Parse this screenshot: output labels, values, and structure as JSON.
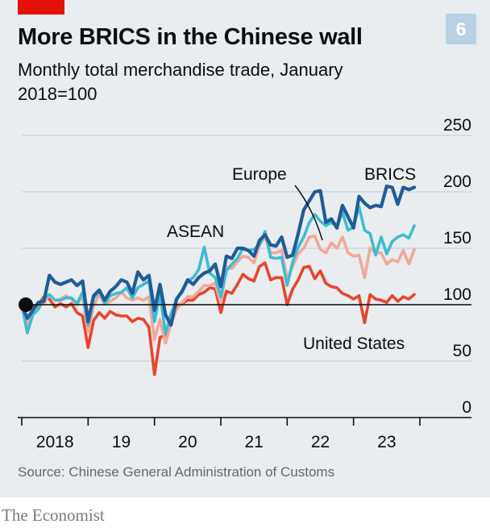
{
  "header": {
    "title": "More BRICS in the Chinese wall",
    "chart_number": "6",
    "subtitle": "Monthly total merchandise trade, January 2018=100"
  },
  "footer": {
    "source": "Source: Chinese General Administration of Customs",
    "brand": "The Economist"
  },
  "colors": {
    "background": "#e9edf0",
    "accent_tag": "#e3120b",
    "brics": "#1f5c99",
    "asean": "#3ebcd2",
    "europe": "#f4a896",
    "united_states": "#e8452c",
    "grid": "#c8d3db",
    "baseline": "#0c0c0c"
  },
  "chart_data": {
    "type": "line",
    "title": "More BRICS in the Chinese wall",
    "subtitle": "Monthly total merchandise trade, January 2018=100",
    "xlabel": "",
    "ylabel": "",
    "ylim": [
      0,
      250
    ],
    "yticks": [
      0,
      50,
      100,
      150,
      200,
      250
    ],
    "xlim": [
      2018.0,
      2024.0
    ],
    "xtick_labels": [
      {
        "x": 2018.5,
        "label": "2018"
      },
      {
        "x": 2019.5,
        "label": "19"
      },
      {
        "x": 2020.5,
        "label": "20"
      },
      {
        "x": 2021.5,
        "label": "21"
      },
      {
        "x": 2022.5,
        "label": "22"
      },
      {
        "x": 2023.5,
        "label": "23"
      }
    ],
    "grid": true,
    "reference_line": 100,
    "x_start": 2018.0,
    "x_step": 0.08333,
    "series": [
      {
        "name": "BRICS",
        "key": "brics",
        "values": [
          100,
          88,
          95,
          102,
          103,
          126,
          120,
          118,
          120,
          122,
          117,
          121,
          85,
          108,
          113,
          104,
          112,
          116,
          122,
          120,
          110,
          129,
          122,
          126,
          95,
          118,
          91,
          82,
          105,
          112,
          122,
          118,
          124,
          128,
          130,
          136,
          116,
          143,
          141,
          150,
          150,
          148,
          143,
          157,
          162,
          153,
          152,
          160,
          142,
          144,
          163,
          184,
          192,
          200,
          201,
          173,
          176,
          168,
          188,
          178,
          168,
          196,
          190,
          186,
          188,
          187,
          205,
          204,
          189,
          204,
          202,
          204
        ]
      },
      {
        "name": "ASEAN",
        "key": "asean",
        "values": [
          100,
          75,
          91,
          96,
          105,
          109,
          104,
          104,
          106,
          106,
          101,
          111,
          82,
          106,
          112,
          101,
          108,
          110,
          111,
          115,
          106,
          115,
          118,
          121,
          85,
          110,
          74,
          92,
          105,
          111,
          121,
          124,
          131,
          151,
          128,
          124,
          107,
          130,
          136,
          141,
          150,
          148,
          149,
          153,
          165,
          142,
          141,
          142,
          117,
          138,
          151,
          160,
          173,
          180,
          174,
          170,
          173,
          169,
          182,
          166,
          169,
          187,
          166,
          163,
          144,
          160,
          145,
          156,
          160,
          162,
          159,
          170
        ]
      },
      {
        "name": "Europe",
        "key": "europe",
        "values": [
          100,
          82,
          95,
          100,
          101,
          109,
          104,
          105,
          108,
          105,
          100,
          108,
          76,
          99,
          109,
          101,
          103,
          106,
          111,
          106,
          104,
          106,
          104,
          107,
          69,
          87,
          66,
          83,
          96,
          102,
          107,
          107,
          112,
          117,
          117,
          119,
          101,
          134,
          132,
          138,
          143,
          142,
          137,
          153,
          160,
          146,
          146,
          148,
          123,
          134,
          145,
          150,
          160,
          161,
          149,
          146,
          155,
          150,
          160,
          146,
          143,
          144,
          124,
          150,
          146,
          146,
          136,
          140,
          138,
          148,
          136,
          149
        ]
      },
      {
        "name": "United States",
        "key": "united_states",
        "values": [
          100,
          98,
          99,
          100,
          107,
          105,
          98,
          101,
          98,
          101,
          93,
          90,
          62,
          86,
          93,
          88,
          94,
          91,
          90,
          90,
          85,
          88,
          87,
          80,
          38,
          71,
          73,
          92,
          99,
          101,
          104,
          104,
          109,
          111,
          115,
          114,
          93,
          112,
          110,
          118,
          127,
          123,
          121,
          134,
          137,
          122,
          124,
          124,
          100,
          114,
          122,
          133,
          134,
          123,
          130,
          119,
          116,
          115,
          110,
          108,
          105,
          108,
          84,
          109,
          105,
          104,
          102,
          108,
          103,
          107,
          105,
          109
        ]
      }
    ],
    "annotations": [
      "BRICS",
      "Europe",
      "ASEAN",
      "United States"
    ]
  }
}
